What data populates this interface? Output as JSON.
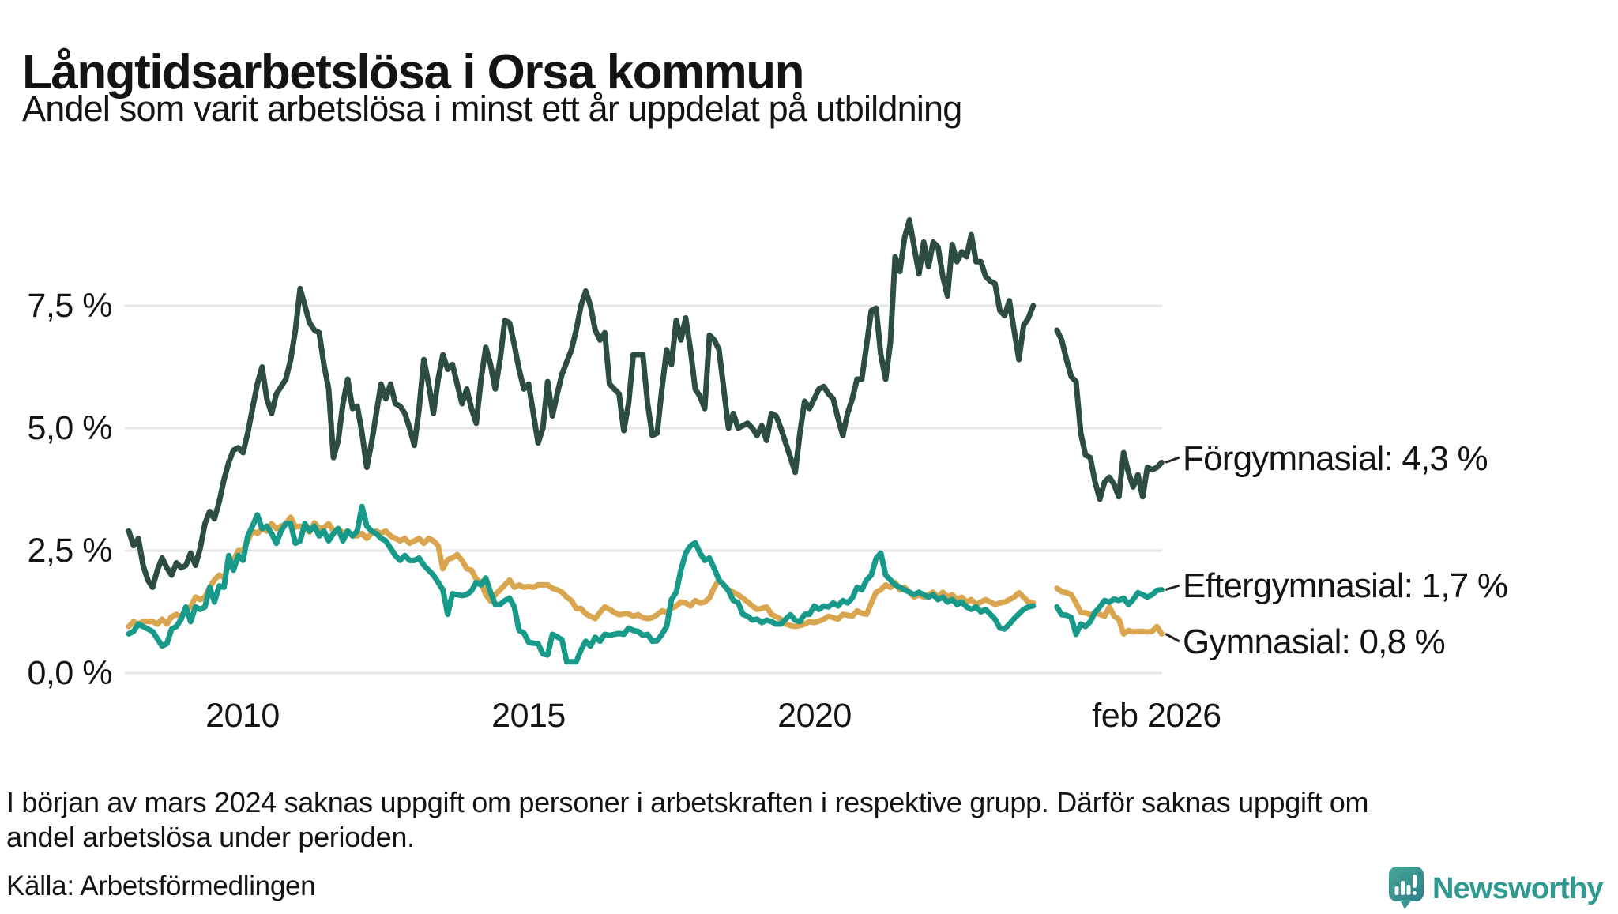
{
  "title": "Långtidsarbetslösa i Orsa kommun",
  "subtitle": "Andel som varit arbetslösa i minst ett år uppdelat på utbildning",
  "footnote": {
    "line1": "I början av mars 2024 saknas uppgift om personer i arbetskraften i respektive grupp. Därför saknas uppgift om",
    "line2": "andel arbetslösa under perioden."
  },
  "source": "Källa: Arbetsförmedlingen",
  "logo": {
    "text": "Newsworthy",
    "icon": "newsworthy-speech-bubble-bar-chart-icon",
    "text_color": "#2f9a92",
    "icon_color_top": "#46a795",
    "icon_color_bottom": "#2d7e89"
  },
  "colors": {
    "background": "#ffffff",
    "gridline": "#e7e7e9",
    "text": "#141414",
    "forgymnasial": "#2c4c44",
    "eftergymnasial": "#189a8a",
    "gymnasial": "#d9a64f"
  },
  "chart_data": {
    "type": "line",
    "title": "Långtidsarbetslösa i Orsa kommun",
    "subtitle": "Andel som varit arbetslösa i minst ett år uppdelat på utbildning",
    "unit": "%",
    "x_start_year": 2008,
    "x_step_months": 1,
    "x_gap_note": "values are null dec 2023 - mar 2024 (no data)",
    "ylim": [
      0,
      9.6
    ],
    "grid": "horizontal",
    "legend_position": "right-of-line-ends",
    "y_ticks": [
      {
        "value": 0.0,
        "label": "0,0 %"
      },
      {
        "value": 2.5,
        "label": "2,5 %"
      },
      {
        "value": 5.0,
        "label": "5,0 %"
      },
      {
        "value": 7.5,
        "label": "7,5 %"
      }
    ],
    "x_ticks": [
      {
        "t": 2010.0,
        "label": "2010"
      },
      {
        "t": 2015.0,
        "label": "2015"
      },
      {
        "t": 2020.0,
        "label": "2020"
      },
      {
        "t": 2026.083,
        "label": "feb 2026"
      }
    ],
    "series": [
      {
        "name": "Förgymnasial",
        "end_label": "Förgymnasial: 4,3 %",
        "end_value": 4.3,
        "color": "#2c4c44",
        "values": [
          2.9,
          2.6,
          2.75,
          2.2,
          1.9,
          1.75,
          2.1,
          2.35,
          2.15,
          2.0,
          2.25,
          2.15,
          2.2,
          2.45,
          2.2,
          2.55,
          3.05,
          3.3,
          3.15,
          3.5,
          3.95,
          4.3,
          4.55,
          4.6,
          4.5,
          4.9,
          5.4,
          5.9,
          6.25,
          5.6,
          5.3,
          5.7,
          5.85,
          6.0,
          6.4,
          7.0,
          7.85,
          7.5,
          7.15,
          7.0,
          6.95,
          6.3,
          5.8,
          4.4,
          4.75,
          5.5,
          6.0,
          5.4,
          5.45,
          4.9,
          4.2,
          4.7,
          5.3,
          5.9,
          5.6,
          5.9,
          5.5,
          5.45,
          5.3,
          5.0,
          4.65,
          5.4,
          6.4,
          5.9,
          5.3,
          6.0,
          6.5,
          6.2,
          6.3,
          5.9,
          5.5,
          5.8,
          5.4,
          5.1,
          6.0,
          6.65,
          6.3,
          5.8,
          6.4,
          7.2,
          7.15,
          6.7,
          6.2,
          5.8,
          5.9,
          5.3,
          4.7,
          5.0,
          5.95,
          5.25,
          5.7,
          6.1,
          6.35,
          6.6,
          7.0,
          7.5,
          7.8,
          7.5,
          7.0,
          6.8,
          6.95,
          5.9,
          5.8,
          5.7,
          4.95,
          5.5,
          6.5,
          6.5,
          6.5,
          5.5,
          4.85,
          4.9,
          5.8,
          6.6,
          6.3,
          7.2,
          6.8,
          7.25,
          6.6,
          5.8,
          5.65,
          5.4,
          6.9,
          6.8,
          6.6,
          5.8,
          5.0,
          5.3,
          5.0,
          5.05,
          5.1,
          5.0,
          4.85,
          5.05,
          4.75,
          5.3,
          5.25,
          5.0,
          4.7,
          4.4,
          4.1,
          4.9,
          5.55,
          5.4,
          5.6,
          5.8,
          5.85,
          5.7,
          5.6,
          5.2,
          4.85,
          5.3,
          5.6,
          6.0,
          6.0,
          6.7,
          7.4,
          7.45,
          6.5,
          6.0,
          6.75,
          8.5,
          8.2,
          8.9,
          9.25,
          8.7,
          8.15,
          8.8,
          8.3,
          8.8,
          8.7,
          8.1,
          7.7,
          8.75,
          8.4,
          8.6,
          8.5,
          8.95,
          8.4,
          8.4,
          8.1,
          8.0,
          7.95,
          7.4,
          7.3,
          7.6,
          7.0,
          6.4,
          7.1,
          7.25,
          7.5,
          null,
          null,
          null,
          null,
          7.0,
          6.8,
          6.4,
          6.05,
          5.95,
          4.9,
          4.45,
          4.4,
          3.9,
          3.55,
          3.9,
          4.0,
          3.85,
          3.6,
          4.5,
          4.1,
          3.8,
          4.05,
          3.6,
          4.2,
          4.15,
          4.2,
          4.3
        ]
      },
      {
        "name": "Eftergymnasial",
        "end_label": "Eftergymnasial: 1,7 %",
        "end_value": 1.7,
        "color": "#189a8a",
        "values": [
          0.8,
          0.85,
          1.0,
          0.95,
          0.9,
          0.85,
          0.7,
          0.55,
          0.6,
          0.9,
          0.95,
          1.1,
          1.35,
          1.05,
          1.35,
          1.3,
          1.35,
          1.75,
          1.45,
          1.78,
          1.75,
          2.4,
          2.1,
          2.4,
          2.3,
          2.8,
          3.0,
          3.23,
          2.95,
          3.0,
          2.85,
          2.65,
          2.9,
          3.05,
          3.05,
          2.65,
          2.7,
          3.05,
          2.9,
          3.0,
          2.8,
          2.9,
          2.7,
          2.85,
          2.95,
          2.7,
          2.9,
          2.8,
          2.9,
          3.4,
          3.0,
          2.9,
          2.85,
          2.75,
          2.7,
          2.55,
          2.4,
          2.3,
          2.4,
          2.3,
          2.3,
          2.35,
          2.2,
          2.1,
          2.0,
          1.85,
          1.7,
          1.2,
          1.62,
          1.6,
          1.58,
          1.6,
          1.68,
          1.85,
          1.8,
          1.94,
          1.65,
          1.4,
          1.4,
          1.48,
          1.53,
          1.35,
          0.87,
          0.82,
          0.63,
          0.61,
          0.6,
          0.39,
          0.37,
          0.79,
          0.74,
          0.68,
          0.23,
          0.23,
          0.23,
          0.47,
          0.65,
          0.55,
          0.73,
          0.65,
          0.79,
          0.77,
          0.79,
          0.81,
          0.79,
          0.92,
          0.87,
          0.85,
          0.77,
          0.79,
          0.65,
          0.66,
          0.79,
          0.95,
          1.5,
          1.65,
          2.1,
          2.45,
          2.6,
          2.66,
          2.45,
          2.3,
          2.35,
          2.13,
          1.9,
          1.8,
          1.68,
          1.48,
          1.44,
          1.2,
          1.16,
          1.08,
          1.1,
          1.03,
          1.08,
          1.05,
          1.0,
          1.0,
          1.1,
          1.19,
          1.08,
          1.05,
          1.2,
          1.2,
          1.37,
          1.3,
          1.37,
          1.35,
          1.43,
          1.37,
          1.48,
          1.43,
          1.53,
          1.75,
          1.7,
          1.9,
          2.0,
          2.34,
          2.45,
          2.0,
          1.9,
          1.8,
          1.75,
          1.7,
          1.65,
          1.6,
          1.65,
          1.6,
          1.55,
          1.6,
          1.5,
          1.55,
          1.45,
          1.5,
          1.4,
          1.45,
          1.35,
          1.3,
          1.35,
          1.25,
          1.3,
          1.2,
          1.1,
          0.92,
          0.9,
          1.0,
          1.11,
          1.21,
          1.3,
          1.35,
          1.37,
          null,
          null,
          null,
          null,
          1.35,
          1.19,
          1.18,
          1.13,
          0.79,
          1.0,
          0.95,
          1.05,
          1.24,
          1.35,
          1.48,
          1.45,
          1.51,
          1.48,
          1.53,
          1.4,
          1.5,
          1.64,
          1.6,
          1.55,
          1.6,
          1.69,
          1.7
        ]
      },
      {
        "name": "Gymnasial",
        "end_label": "Gymnasial: 0,8 %",
        "end_value": 0.8,
        "color": "#d9a64f",
        "values": [
          0.95,
          1.05,
          1.0,
          1.05,
          1.05,
          1.05,
          1.0,
          1.1,
          1.0,
          1.15,
          1.2,
          1.15,
          1.3,
          1.35,
          1.55,
          1.5,
          1.55,
          1.75,
          1.9,
          2.0,
          1.95,
          2.2,
          2.3,
          2.5,
          2.5,
          2.7,
          2.9,
          2.85,
          2.95,
          2.9,
          3.05,
          2.95,
          3.0,
          3.05,
          3.18,
          2.98,
          3.0,
          2.95,
          2.88,
          3.07,
          2.95,
          2.97,
          3.05,
          2.9,
          2.95,
          2.85,
          2.9,
          2.8,
          2.8,
          2.85,
          2.75,
          2.85,
          2.9,
          2.85,
          2.9,
          2.8,
          2.75,
          2.7,
          2.75,
          2.65,
          2.7,
          2.75,
          2.65,
          2.75,
          2.7,
          2.6,
          2.13,
          2.32,
          2.35,
          2.42,
          2.3,
          2.13,
          2.1,
          1.92,
          1.85,
          1.6,
          1.47,
          1.6,
          1.7,
          1.8,
          1.9,
          1.75,
          1.8,
          1.75,
          1.77,
          1.75,
          1.8,
          1.8,
          1.8,
          1.73,
          1.7,
          1.65,
          1.55,
          1.48,
          1.32,
          1.32,
          1.21,
          1.16,
          1.11,
          1.24,
          1.35,
          1.3,
          1.24,
          1.19,
          1.21,
          1.21,
          1.16,
          1.19,
          1.13,
          1.11,
          1.13,
          1.19,
          1.27,
          1.24,
          1.32,
          1.37,
          1.45,
          1.43,
          1.37,
          1.48,
          1.43,
          1.45,
          1.53,
          1.75,
          1.9,
          1.8,
          1.7,
          1.65,
          1.6,
          1.53,
          1.45,
          1.37,
          1.3,
          1.32,
          1.35,
          1.2,
          1.15,
          1.1,
          1.0,
          0.97,
          0.95,
          0.97,
          1.0,
          1.05,
          1.03,
          1.06,
          1.1,
          1.16,
          1.13,
          1.1,
          1.2,
          1.18,
          1.16,
          1.27,
          1.22,
          1.2,
          1.43,
          1.65,
          1.7,
          1.8,
          1.75,
          1.85,
          1.7,
          1.75,
          1.65,
          1.55,
          1.6,
          1.55,
          1.6,
          1.65,
          1.55,
          1.65,
          1.55,
          1.6,
          1.5,
          1.55,
          1.45,
          1.5,
          1.4,
          1.45,
          1.5,
          1.45,
          1.4,
          1.43,
          1.45,
          1.5,
          1.55,
          1.64,
          1.55,
          1.45,
          1.43,
          null,
          null,
          null,
          null,
          1.73,
          1.66,
          1.64,
          1.6,
          1.43,
          1.24,
          1.23,
          1.19,
          1.23,
          1.2,
          1.16,
          1.35,
          1.16,
          1.1,
          0.8,
          0.87,
          0.84,
          0.85,
          0.85,
          0.84,
          0.85,
          0.95,
          0.8
        ]
      }
    ]
  }
}
